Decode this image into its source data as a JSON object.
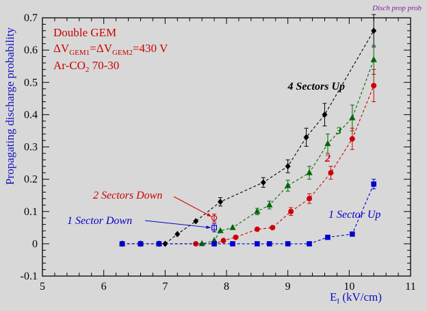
{
  "chart_data": {
    "type": "scatter",
    "corner_label": "Disch prop prob",
    "ylabel": "Propagating discharge probability",
    "xlabel": {
      "main": "E",
      "sub": "I",
      "unit": " (kV/cm)"
    },
    "xlim": [
      5,
      11
    ],
    "ylim": [
      -0.1,
      0.7
    ],
    "xticks": [
      "5",
      "6",
      "7",
      "8",
      "9",
      "10",
      "11"
    ],
    "yticks": [
      "-0.1",
      "0",
      "0.1",
      "0.2",
      "0.3",
      "0.4",
      "0.5",
      "0.6",
      "0.7"
    ],
    "info_lines": {
      "line1": "Double GEM",
      "line2": {
        "a": "ΔV",
        "a_sub": "GEM1",
        "b": "=ΔV",
        "b_sub": "GEM2",
        "c": "=430 V"
      },
      "line3": {
        "a": "Ar-CO",
        "a_sub": "2",
        "b": " 70-30"
      }
    },
    "series": [
      {
        "name": "4 Sectors Up",
        "label": "4 Sectors Up",
        "color": "#000000",
        "marker": "diamond",
        "x": [
          6.3,
          6.6,
          6.9,
          7.0,
          7.2,
          7.5,
          7.9,
          8.6,
          9.0,
          9.3,
          9.6,
          10.4
        ],
        "y": [
          0,
          0,
          0,
          0,
          0.03,
          0.07,
          0.13,
          0.19,
          0.24,
          0.33,
          0.4,
          0.66
        ],
        "err": [
          0,
          0,
          0,
          0,
          0,
          0,
          0.013,
          0.015,
          0.02,
          0.028,
          0.035,
          0.05
        ]
      },
      {
        "name": "3",
        "label": "3",
        "color": "#006600",
        "marker": "triangle",
        "x": [
          6.3,
          6.6,
          6.9,
          7.6,
          7.8,
          7.9,
          8.1,
          8.5,
          8.7,
          9.0,
          9.35,
          9.65,
          10.05,
          10.4
        ],
        "y": [
          0,
          0,
          0,
          0,
          0.01,
          0.04,
          0.05,
          0.1,
          0.12,
          0.18,
          0.22,
          0.31,
          0.39,
          0.57
        ],
        "err": [
          0,
          0,
          0,
          0,
          0,
          0,
          0,
          0.01,
          0.012,
          0.017,
          0.02,
          0.03,
          0.04,
          0.045
        ]
      },
      {
        "name": "2",
        "label": "2",
        "color": "#cc0000",
        "marker": "circle",
        "x": [
          6.3,
          6.6,
          6.9,
          7.5,
          7.8,
          7.95,
          8.15,
          8.5,
          8.75,
          9.05,
          9.35,
          9.7,
          10.05,
          10.4
        ],
        "y": [
          0,
          0,
          0,
          0,
          0,
          0.01,
          0.02,
          0.045,
          0.05,
          0.1,
          0.14,
          0.22,
          0.325,
          0.49
        ],
        "err": [
          0,
          0,
          0,
          0,
          0,
          0,
          0,
          0,
          0,
          0.012,
          0.015,
          0.02,
          0.033,
          0.05
        ]
      },
      {
        "name": "1 Sector Up",
        "label": "1 Sector Up",
        "color": "#0000cc",
        "marker": "square",
        "x": [
          6.3,
          6.6,
          6.9,
          7.8,
          8.1,
          8.5,
          8.7,
          9.0,
          9.35,
          9.65,
          10.05,
          10.4
        ],
        "y": [
          0,
          0,
          0,
          0,
          0,
          0,
          0,
          0,
          0,
          0.02,
          0.03,
          0.185
        ],
        "err": [
          0,
          0,
          0,
          0,
          0,
          0,
          0,
          0,
          0,
          0,
          0,
          0.015
        ]
      }
    ],
    "open_points": [
      {
        "name": "2 Sectors Down",
        "label": "2 Sectors Down",
        "color": "#cc0000",
        "marker": "circle",
        "x": 7.8,
        "y": 0.08,
        "err": 0.012
      },
      {
        "name": "1 Sector Down",
        "label": "1 Sector Down",
        "color": "#0000cc",
        "marker": "square",
        "x": 7.8,
        "y": 0.05,
        "err": 0.013
      }
    ]
  }
}
